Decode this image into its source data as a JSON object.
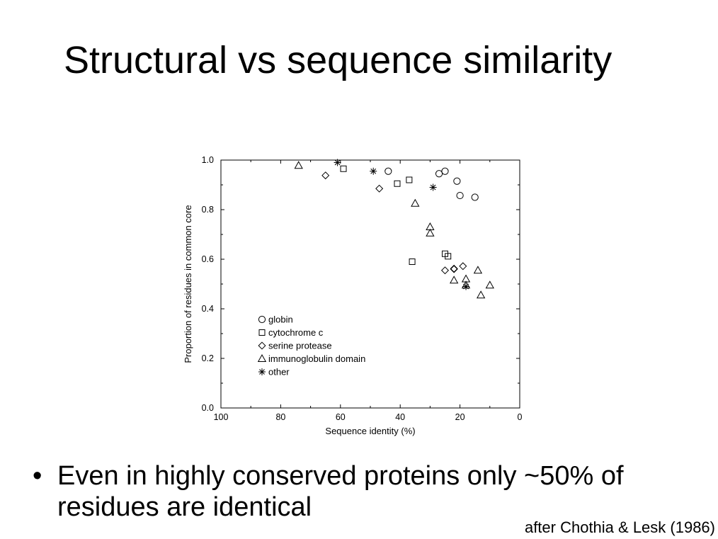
{
  "slide": {
    "title": "Structural vs sequence similarity",
    "bullet_symbol": "•",
    "bullet": "Even in highly conserved proteins only ~50% of residues are identical",
    "citation": "after Chothia & Lesk (1986)"
  },
  "chart_data": {
    "type": "scatter",
    "title": "",
    "xlabel": "Sequence identity (%)",
    "ylabel": "Proportion of residues in common core",
    "xlim": [
      100,
      0
    ],
    "ylim": [
      0.0,
      1.0
    ],
    "x_ticks": [
      "100",
      "80",
      "60",
      "40",
      "20",
      "0"
    ],
    "y_ticks": [
      "0.0",
      "0.2",
      "0.4",
      "0.6",
      "0.8",
      "1.0"
    ],
    "grid": false,
    "legend_placement": "lower-left",
    "series": [
      {
        "name": "globin",
        "marker": "circle",
        "x": [
          44,
          27,
          25,
          21,
          20,
          15
        ],
        "y": [
          0.955,
          0.945,
          0.955,
          0.915,
          0.857,
          0.85
        ]
      },
      {
        "name": "cytochrome c",
        "marker": "square",
        "x": [
          59,
          41,
          37,
          36,
          25,
          24
        ],
        "y": [
          0.965,
          0.905,
          0.92,
          0.59,
          0.622,
          0.612
        ]
      },
      {
        "name": "serine protease",
        "marker": "diamond",
        "x": [
          65,
          47,
          25,
          22,
          22,
          19
        ],
        "y": [
          0.938,
          0.885,
          0.555,
          0.56,
          0.562,
          0.572
        ]
      },
      {
        "name": "immunoglobulin domain",
        "marker": "triangle",
        "x": [
          74,
          35,
          30,
          30,
          22,
          18,
          18,
          14,
          13,
          10
        ],
        "y": [
          0.978,
          0.825,
          0.73,
          0.705,
          0.515,
          0.52,
          0.495,
          0.555,
          0.455,
          0.495
        ]
      },
      {
        "name": "other",
        "marker": "star",
        "x": [
          61,
          49,
          29,
          18
        ],
        "y": [
          0.99,
          0.955,
          0.89,
          0.49
        ]
      }
    ]
  }
}
